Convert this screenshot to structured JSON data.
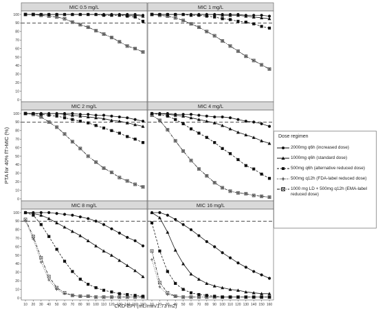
{
  "chart_data": {
    "type": "line",
    "ylabel": "PTA for 40% fT>MIC (%)",
    "xlabel": "CKD-EPI (mL/min/1.73 m2)",
    "x": [
      10,
      20,
      30,
      40,
      50,
      60,
      70,
      80,
      90,
      100,
      110,
      120,
      130,
      140,
      150,
      160
    ],
    "x_ticks": [
      "10",
      "20",
      "30",
      "40",
      "50",
      "60",
      "70",
      "80",
      "90",
      "100",
      "110",
      "120",
      "130",
      "140",
      "150",
      "160"
    ],
    "y_ticks": [
      "0",
      "10",
      "20",
      "30",
      "40",
      "50",
      "60",
      "70",
      "80",
      "90",
      "100"
    ],
    "ylim": [
      0,
      100
    ],
    "reference_line": 90,
    "legend_title": "Dose regimen",
    "legend_placement": "right",
    "series_styles": [
      {
        "marker": "circle",
        "dash": "",
        "label": "2000mg q6h (increased dose)"
      },
      {
        "marker": "triangle",
        "dash": "",
        "label": "1000mg q6h (standard dose)"
      },
      {
        "marker": "square",
        "dash": "3,2",
        "label": "500mg q6h (alternative reduced dose)"
      },
      {
        "marker": "plus",
        "dash": "1,1.5",
        "label": "500mg q12h (FDA-label reduced dose)"
      },
      {
        "marker": "xsquare",
        "dash": "4,1.5,1,1.5",
        "label": "1000 mg LD + 500mg q12h (EMA-label reduced dose)"
      }
    ],
    "panels": [
      {
        "title": "MIC 0.5 mg/L",
        "series": [
          {
            "values": [
              100,
              100,
              100,
              100,
              100,
              100,
              100,
              100,
              100,
              100,
              100,
              100,
              100,
              100,
              100,
              99
            ]
          },
          {
            "values": [
              100,
              100,
              100,
              100,
              100,
              100,
              100,
              100,
              100,
              100,
              100,
              100,
              100,
              99,
              99,
              98
            ]
          },
          {
            "values": [
              100,
              100,
              100,
              100,
              100,
              100,
              100,
              100,
              100,
              100,
              99,
              99,
              99,
              98,
              97,
              92
            ]
          },
          {
            "values": [
              100,
              100,
              99,
              98,
              97,
              95,
              91,
              88,
              85,
              81,
              77,
              73,
              68,
              63,
              60,
              56
            ]
          },
          {
            "values": [
              100,
              100,
              99,
              98,
              97,
              95,
              91,
              88,
              85,
              81,
              77,
              73,
              68,
              63,
              60,
              56
            ]
          }
        ]
      },
      {
        "title": "MIC 1 mg/L",
        "series": [
          {
            "values": [
              100,
              100,
              100,
              100,
              100,
              100,
              100,
              100,
              100,
              100,
              100,
              100,
              99,
              99,
              99,
              98
            ]
          },
          {
            "values": [
              100,
              100,
              100,
              100,
              100,
              100,
              100,
              100,
              100,
              99,
              99,
              99,
              98,
              97,
              96,
              95
            ]
          },
          {
            "values": [
              100,
              100,
              100,
              100,
              100,
              99,
              99,
              98,
              97,
              95,
              94,
              92,
              91,
              89,
              86,
              84
            ]
          },
          {
            "values": [
              100,
              99,
              98,
              96,
              93,
              89,
              85,
              80,
              75,
              69,
              63,
              57,
              51,
              46,
              41,
              36
            ]
          },
          {
            "values": [
              100,
              99,
              98,
              96,
              93,
              89,
              85,
              80,
              75,
              69,
              63,
              57,
              51,
              46,
              41,
              36
            ]
          }
        ]
      },
      {
        "title": "MIC 2 mg/L",
        "series": [
          {
            "values": [
              100,
              100,
              100,
              100,
              100,
              100,
              100,
              99,
              99,
              98,
              98,
              97,
              96,
              95,
              93,
              91
            ]
          },
          {
            "values": [
              100,
              100,
              100,
              100,
              100,
              99,
              98,
              97,
              96,
              95,
              94,
              92,
              91,
              89,
              87,
              85
            ]
          },
          {
            "values": [
              100,
              100,
              99,
              98,
              97,
              95,
              93,
              91,
              89,
              86,
              83,
              80,
              77,
              73,
              70,
              66
            ]
          },
          {
            "values": [
              100,
              99,
              96,
              90,
              84,
              76,
              67,
              59,
              50,
              43,
              36,
              31,
              25,
              21,
              17,
              14
            ]
          },
          {
            "values": [
              100,
              99,
              96,
              90,
              84,
              76,
              67,
              59,
              50,
              43,
              36,
              31,
              25,
              21,
              17,
              14
            ]
          }
        ]
      },
      {
        "title": "MIC 4 mg/L",
        "series": [
          {
            "values": [
              100,
              100,
              100,
              99,
              99,
              99,
              98,
              97,
              96,
              96,
              95,
              93,
              91,
              90,
              88,
              85
            ]
          },
          {
            "values": [
              100,
              100,
              99,
              98,
              97,
              95,
              93,
              91,
              89,
              86,
              82,
              78,
              75,
              72,
              68,
              65
            ]
          },
          {
            "values": [
              100,
              99,
              97,
              93,
              88,
              82,
              77,
              72,
              66,
              59,
              53,
              46,
              39,
              35,
              29,
              24
            ]
          },
          {
            "values": [
              98,
              92,
              81,
              68,
              56,
              45,
              35,
              27,
              19,
              13,
              9,
              7,
              6,
              4,
              3,
              2
            ]
          },
          {
            "values": [
              98,
              92,
              81,
              68,
              56,
              45,
              35,
              27,
              19,
              13,
              9,
              7,
              6,
              4,
              3,
              2
            ]
          }
        ]
      },
      {
        "title": "MIC 8 mg/L",
        "series": [
          {
            "values": [
              100,
              100,
              100,
              100,
              99,
              98,
              97,
              95,
              93,
              90,
              86,
              81,
              76,
              71,
              67,
              61
            ]
          },
          {
            "values": [
              100,
              99,
              97,
              93,
              88,
              83,
              78,
              73,
              67,
              61,
              55,
              50,
              44,
              38,
              32,
              25
            ]
          },
          {
            "values": [
              100,
              97,
              86,
              72,
              57,
              43,
              31,
              22,
              16,
              12,
              9,
              7,
              5,
              4,
              3,
              2
            ]
          },
          {
            "values": [
              90,
              69,
              42,
              21,
              10,
              5,
              3,
              2,
              2,
              1,
              1,
              1,
              1,
              1,
              1,
              1
            ]
          },
          {
            "values": [
              92,
              72,
              47,
              25,
              12,
              6,
              3,
              2,
              2,
              1,
              1,
              1,
              1,
              1,
              1,
              1
            ]
          }
        ]
      },
      {
        "title": "MIC 16 mg/L",
        "series": [
          {
            "values": [
              100,
              100,
              97,
              92,
              86,
              80,
              73,
              66,
              60,
              53,
              47,
              41,
              36,
              31,
              27,
              23
            ]
          },
          {
            "values": [
              100,
              94,
              77,
              56,
              40,
              28,
              22,
              17,
              14,
              12,
              10,
              9,
              7,
              6,
              5,
              5
            ]
          },
          {
            "values": [
              88,
              55,
              31,
              17,
              10,
              6,
              4,
              3,
              2,
              1,
              1,
              1,
              1,
              1,
              1,
              1
            ]
          },
          {
            "values": [
              45,
              13,
              4,
              2,
              1,
              1,
              1,
              1,
              1,
              1,
              1,
              1,
              1,
              1,
              1,
              1
            ]
          },
          {
            "values": [
              55,
              18,
              6,
              2,
              1,
              1,
              1,
              1,
              1,
              1,
              1,
              1,
              1,
              1,
              1,
              1
            ]
          }
        ]
      }
    ]
  }
}
